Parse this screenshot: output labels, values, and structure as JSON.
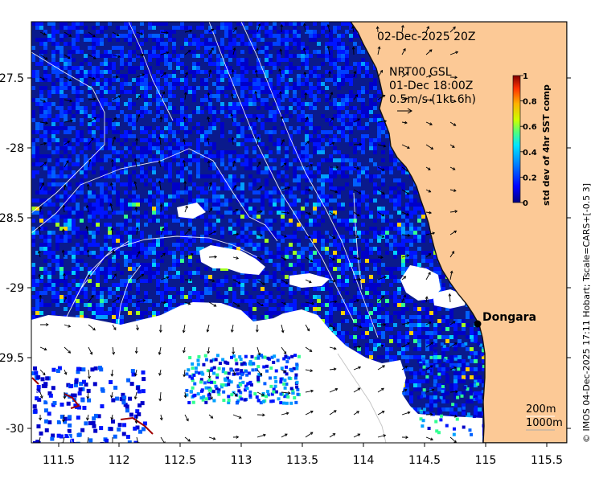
{
  "map": {
    "date_label": "02-Dec-2025 20Z",
    "current_model": "NRT00 GSL",
    "current_time": "01-Dec 18:00Z",
    "scale_label": "0.5m/s (1kt 6h)",
    "place_name": "Dongara",
    "depth_200": "200m",
    "depth_1000": "1000m",
    "credit": "© IMOS 04-Dec-2025 17:11 Hobart; Tscale=CARS+[-0.5 3]",
    "lon_ticks": [
      "111.5",
      "112",
      "112.5",
      "113",
      "113.5",
      "114",
      "114.5",
      "115",
      "115.5"
    ],
    "lat_ticks": [
      "-27.5",
      "-28",
      "-28.5",
      "-29",
      "-29.5",
      "-30"
    ]
  },
  "colorbar": {
    "label": "std dev of 4hr SST comp",
    "ticks": [
      "0",
      "0.2",
      "0.4",
      "0.6",
      "0.8",
      "1"
    ],
    "colors": [
      "#00007f",
      "#0000ff",
      "#0080ff",
      "#00e5ff",
      "#4cff80",
      "#ccff00",
      "#ffb000",
      "#ff3000",
      "#7f0000"
    ]
  },
  "colors": {
    "land": "#fcc996",
    "ocean_deep": "#0a1a8c",
    "no_data": "#ffffff"
  }
}
